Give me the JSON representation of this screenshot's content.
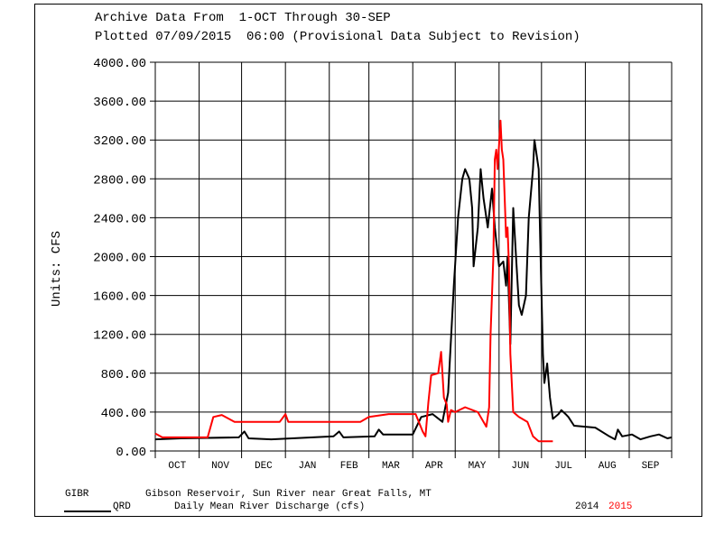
{
  "chart_data": {
    "type": "line",
    "title": "Archive Data From  1-OCT Through 30-SEP",
    "subtitle": "Plotted 07/09/2015  06:00 (Provisional Data Subject to Revision)",
    "ylabel": "Units: CFS",
    "xlabel": "",
    "ylim": [
      0,
      4000
    ],
    "yticks": [
      "0.00",
      "400.00",
      "800.00",
      "1200.00",
      "1600.00",
      "2000.00",
      "2400.00",
      "2800.00",
      "3200.00",
      "3600.00",
      "4000.00"
    ],
    "x_unit": "day of water year (0 = 1-Oct)",
    "xlim": [
      0,
      365
    ],
    "month_starts": [
      0,
      31,
      61,
      92,
      123,
      151,
      182,
      212,
      243,
      273,
      304,
      335,
      365
    ],
    "xtick_labels": [
      "OCT",
      "NOV",
      "DEC",
      "JAN",
      "FEB",
      "MAR",
      "APR",
      "MAY",
      "JUN",
      "JUL",
      "AUG",
      "SEP"
    ],
    "grid": true,
    "series": [
      {
        "name": "2014",
        "color": "#000000",
        "points": [
          [
            0,
            120
          ],
          [
            18,
            130
          ],
          [
            59,
            140
          ],
          [
            63,
            200
          ],
          [
            66,
            130
          ],
          [
            82,
            120
          ],
          [
            126,
            150
          ],
          [
            130,
            200
          ],
          [
            133,
            140
          ],
          [
            155,
            150
          ],
          [
            158,
            220
          ],
          [
            161,
            170
          ],
          [
            182,
            170
          ],
          [
            188,
            350
          ],
          [
            196,
            380
          ],
          [
            203,
            300
          ],
          [
            207,
            600
          ],
          [
            211,
            1700
          ],
          [
            214,
            2400
          ],
          [
            217,
            2800
          ],
          [
            219,
            2900
          ],
          [
            222,
            2800
          ],
          [
            224,
            2500
          ],
          [
            225,
            1900
          ],
          [
            228,
            2300
          ],
          [
            230,
            2900
          ],
          [
            232,
            2600
          ],
          [
            235,
            2300
          ],
          [
            238,
            2700
          ],
          [
            240,
            2300
          ],
          [
            243,
            1900
          ],
          [
            246,
            1950
          ],
          [
            248,
            1700
          ],
          [
            249,
            2000
          ],
          [
            251,
            1100
          ],
          [
            253,
            2500
          ],
          [
            255,
            2000
          ],
          [
            257,
            1500
          ],
          [
            259,
            1400
          ],
          [
            262,
            1600
          ],
          [
            264,
            2400
          ],
          [
            267,
            2900
          ],
          [
            268,
            3200
          ],
          [
            271,
            2900
          ],
          [
            272,
            2200
          ],
          [
            274,
            1000
          ],
          [
            275,
            700
          ],
          [
            277,
            900
          ],
          [
            279,
            550
          ],
          [
            281,
            330
          ],
          [
            285,
            380
          ],
          [
            287,
            420
          ],
          [
            290,
            380
          ],
          [
            292,
            350
          ],
          [
            296,
            260
          ],
          [
            311,
            240
          ],
          [
            321,
            150
          ],
          [
            325,
            120
          ],
          [
            327,
            220
          ],
          [
            330,
            150
          ],
          [
            337,
            170
          ],
          [
            343,
            120
          ],
          [
            350,
            150
          ],
          [
            356,
            170
          ],
          [
            362,
            130
          ],
          [
            365,
            140
          ]
        ]
      },
      {
        "name": "2015",
        "color": "#ff0000",
        "points": [
          [
            0,
            180
          ],
          [
            5,
            140
          ],
          [
            37,
            140
          ],
          [
            41,
            350
          ],
          [
            47,
            370
          ],
          [
            56,
            300
          ],
          [
            88,
            300
          ],
          [
            92,
            380
          ],
          [
            94,
            300
          ],
          [
            145,
            300
          ],
          [
            151,
            350
          ],
          [
            165,
            380
          ],
          [
            184,
            380
          ],
          [
            189,
            200
          ],
          [
            191,
            150
          ],
          [
            193,
            500
          ],
          [
            195,
            780
          ],
          [
            200,
            800
          ],
          [
            202,
            1020
          ],
          [
            203,
            800
          ],
          [
            204,
            550
          ],
          [
            206,
            480
          ],
          [
            207,
            300
          ],
          [
            209,
            420
          ],
          [
            212,
            400
          ],
          [
            219,
            450
          ],
          [
            228,
            400
          ],
          [
            232,
            300
          ],
          [
            234,
            250
          ],
          [
            236,
            450
          ],
          [
            237,
            1200
          ],
          [
            239,
            2000
          ],
          [
            240,
            3000
          ],
          [
            241,
            3100
          ],
          [
            242,
            2900
          ],
          [
            244,
            3400
          ],
          [
            245,
            3100
          ],
          [
            246,
            3000
          ],
          [
            248,
            2200
          ],
          [
            249,
            2300
          ],
          [
            250,
            1900
          ],
          [
            251,
            1000
          ],
          [
            253,
            400
          ],
          [
            257,
            350
          ],
          [
            263,
            300
          ],
          [
            267,
            150
          ],
          [
            271,
            100
          ],
          [
            281,
            100
          ]
        ]
      }
    ],
    "legend": {
      "station": "GIBR",
      "station_name": "Gibson Reservoir, Sun River near Great Falls, MT",
      "parameter": "QRD",
      "parameter_desc": "Daily Mean River Discharge (cfs)",
      "year1": "2014",
      "year2": "2015",
      "placement": "bottom"
    }
  }
}
